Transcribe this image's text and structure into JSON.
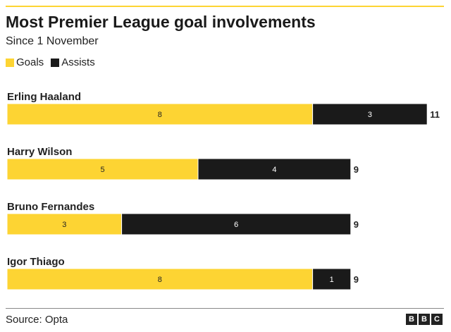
{
  "header": {
    "title": "Most Premier League goal involvements",
    "subtitle": "Since 1 November"
  },
  "colors": {
    "goals": "#fdd433",
    "assists": "#1a1a1a",
    "accent_rule": "#fdd433"
  },
  "chart_data": {
    "type": "bar",
    "orientation": "horizontal",
    "stacked": true,
    "title": "Most Premier League goal involvements",
    "subtitle": "Since 1 November",
    "categories": [
      "Erling Haaland",
      "Harry Wilson",
      "Bruno Fernandes",
      "Igor Thiago"
    ],
    "series": [
      {
        "name": "Goals",
        "values": [
          8,
          5,
          3,
          8
        ],
        "color": "#fdd433"
      },
      {
        "name": "Assists",
        "values": [
          3,
          4,
          6,
          1
        ],
        "color": "#1a1a1a"
      }
    ],
    "totals": [
      11,
      9,
      9,
      9
    ],
    "xlim": [
      0,
      11
    ],
    "grid": false,
    "legend": "top-left"
  },
  "footer": {
    "source": "Source: Opta",
    "logo_letters": [
      "B",
      "B",
      "C"
    ]
  }
}
